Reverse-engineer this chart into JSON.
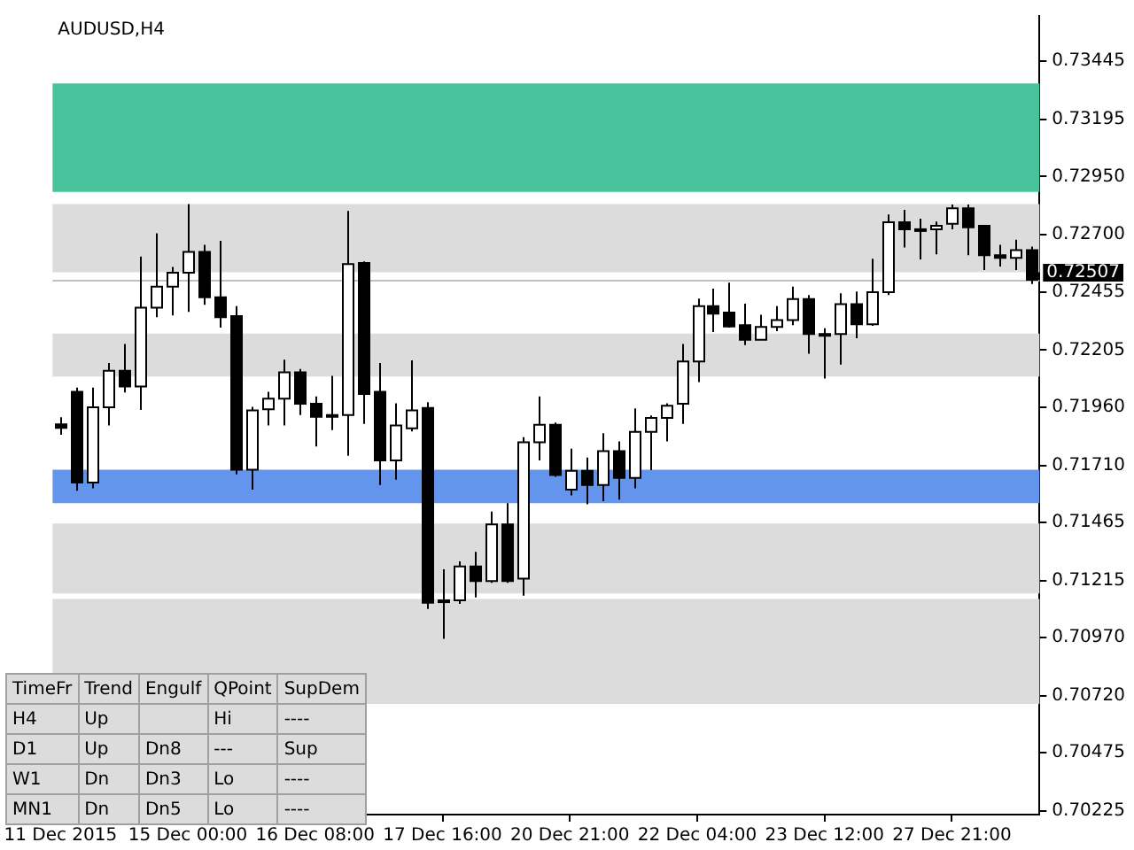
{
  "chart_data": {
    "type": "candlestick",
    "title": "AUDUSD,H4",
    "categories": [
      "11 Dec 2015",
      null,
      null,
      null,
      null,
      null,
      null,
      null,
      "15 Dec 00:00",
      null,
      null,
      null,
      null,
      null,
      null,
      null,
      "16 Dec 08:00",
      null,
      null,
      null,
      null,
      null,
      null,
      null,
      "17 Dec 16:00",
      null,
      null,
      null,
      null,
      null,
      null,
      null,
      "20 Dec 21:00",
      null,
      null,
      null,
      null,
      null,
      null,
      null,
      "22 Dec 04:00",
      null,
      null,
      null,
      null,
      null,
      null,
      null,
      "23 Dec 12:00",
      null,
      null,
      null,
      null,
      null,
      null,
      null,
      "27 Dec 21:00",
      null,
      null,
      null,
      null,
      null
    ],
    "ohlc": [
      [
        0.71886,
        0.71916,
        0.71841,
        0.71871
      ],
      [
        0.72026,
        0.72044,
        0.71601,
        0.71636
      ],
      [
        0.71636,
        0.72044,
        0.71611,
        0.71959
      ],
      [
        0.71959,
        0.72149,
        0.71881,
        0.72116
      ],
      [
        0.72116,
        0.72231,
        0.72023,
        0.72049
      ],
      [
        0.72049,
        0.72607,
        0.71948,
        0.72387
      ],
      [
        0.72387,
        0.72706,
        0.72346,
        0.72477
      ],
      [
        0.72477,
        0.72562,
        0.72354,
        0.72537
      ],
      [
        0.72537,
        0.72832,
        0.72369,
        0.72627
      ],
      [
        0.72627,
        0.72657,
        0.72399,
        0.72432
      ],
      [
        0.72432,
        0.72674,
        0.72301,
        0.72346
      ],
      [
        0.72351,
        0.72394,
        0.71671,
        0.71691
      ],
      [
        0.71691,
        0.71961,
        0.71606,
        0.71946
      ],
      [
        0.71951,
        0.72026,
        0.71881,
        0.71996
      ],
      [
        0.71996,
        0.72164,
        0.71881,
        0.72109
      ],
      [
        0.72109,
        0.72124,
        0.71926,
        0.71974
      ],
      [
        0.71974,
        0.72006,
        0.71791,
        0.71918
      ],
      [
        0.71926,
        0.72094,
        0.71861,
        0.71926
      ],
      [
        0.71926,
        0.72802,
        0.71751,
        0.72574
      ],
      [
        0.72579,
        0.72586,
        0.71888,
        0.72016
      ],
      [
        0.72026,
        0.72149,
        0.71626,
        0.71731
      ],
      [
        0.71731,
        0.71976,
        0.71648,
        0.71881
      ],
      [
        0.71869,
        0.72161,
        0.71856,
        0.71946
      ],
      [
        0.71956,
        0.71981,
        0.71093,
        0.7112
      ],
      [
        0.7113,
        0.71263,
        0.70965,
        0.7113
      ],
      [
        0.7113,
        0.71298,
        0.71115,
        0.71276
      ],
      [
        0.71276,
        0.71338,
        0.71143,
        0.71213
      ],
      [
        0.71213,
        0.71511,
        0.71205,
        0.71456
      ],
      [
        0.71456,
        0.71548,
        0.71205,
        0.71213
      ],
      [
        0.71223,
        0.71831,
        0.7115,
        0.71809
      ],
      [
        0.71809,
        0.72006,
        0.71731,
        0.71884
      ],
      [
        0.71884,
        0.71894,
        0.71661,
        0.71668
      ],
      [
        0.71606,
        0.71781,
        0.71581,
        0.71686
      ],
      [
        0.71686,
        0.71743,
        0.71543,
        0.71626
      ],
      [
        0.71626,
        0.71848,
        0.71556,
        0.71771
      ],
      [
        0.71771,
        0.71813,
        0.71563,
        0.71656
      ],
      [
        0.71656,
        0.71954,
        0.71611,
        0.71854
      ],
      [
        0.71854,
        0.71924,
        0.71689,
        0.71914
      ],
      [
        0.71914,
        0.71976,
        0.71813,
        0.71966
      ],
      [
        0.71974,
        0.72231,
        0.71888,
        0.72156
      ],
      [
        0.72156,
        0.72426,
        0.72068,
        0.72394
      ],
      [
        0.72394,
        0.72469,
        0.72282,
        0.72361
      ],
      [
        0.72366,
        0.72494,
        0.72301,
        0.72306
      ],
      [
        0.72312,
        0.72404,
        0.72226,
        0.72249
      ],
      [
        0.72249,
        0.72357,
        0.72249,
        0.72304
      ],
      [
        0.72304,
        0.72394,
        0.72286,
        0.72334
      ],
      [
        0.72334,
        0.72477,
        0.72312,
        0.72424
      ],
      [
        0.72424,
        0.72441,
        0.72189,
        0.72274
      ],
      [
        0.72274,
        0.72299,
        0.72083,
        0.72274
      ],
      [
        0.72274,
        0.72449,
        0.72143,
        0.72402
      ],
      [
        0.72402,
        0.72456,
        0.72256,
        0.72316
      ],
      [
        0.72316,
        0.72597,
        0.72309,
        0.72454
      ],
      [
        0.72454,
        0.72787,
        0.72441,
        0.72754
      ],
      [
        0.72754,
        0.72807,
        0.72646,
        0.72724
      ],
      [
        0.72724,
        0.72769,
        0.72594,
        0.72724
      ],
      [
        0.72724,
        0.72757,
        0.72616,
        0.72739
      ],
      [
        0.72747,
        0.7283,
        0.72724,
        0.72814
      ],
      [
        0.72814,
        0.7283,
        0.72612,
        0.72732
      ],
      [
        0.72739,
        0.72739,
        0.72549,
        0.72612
      ],
      [
        0.72612,
        0.72657,
        0.72564,
        0.72601
      ],
      [
        0.72601,
        0.72679,
        0.72549,
        0.72634
      ],
      [
        0.72634,
        0.72649,
        0.72489,
        0.72507
      ]
    ],
    "colors": [
      "#000000",
      "#000000",
      "#ffffff",
      "#ffffff",
      "#000000",
      "#ffffff",
      "#ffffff",
      "#ffffff",
      "#ffffff",
      "#000000",
      "#000000",
      "#000000",
      "#ffffff",
      "#ffffff",
      "#ffffff",
      "#000000",
      "#000000",
      "#000000",
      "#ffffff",
      "#000000",
      "#000000",
      "#ffffff",
      "#ffffff",
      "#000000",
      "#000000",
      "#ffffff",
      "#000000",
      "#ffffff",
      "#000000",
      "#ffffff",
      "#ffffff",
      "#000000",
      "#ffffff",
      "#000000",
      "#ffffff",
      "#000000",
      "#ffffff",
      "#ffffff",
      "#ffffff",
      "#ffffff",
      "#ffffff",
      "#000000",
      "#000000",
      "#000000",
      "#ffffff",
      "#ffffff",
      "#ffffff",
      "#000000",
      "#000000",
      "#ffffff",
      "#000000",
      "#ffffff",
      "#ffffff",
      "#000000",
      "#000000",
      "#ffffff",
      "#ffffff",
      "#000000",
      "#000000",
      "#000000",
      "#ffffff",
      "#000000"
    ],
    "ylim": [
      0.7021,
      0.7364
    ],
    "yticks": [
      {
        "value": 0.73445,
        "label": "0.73445"
      },
      {
        "value": 0.73195,
        "label": "0.73195"
      },
      {
        "value": 0.7295,
        "label": "0.72950"
      },
      {
        "value": 0.727,
        "label": "0.72700"
      },
      {
        "value": 0.72455,
        "label": "0.72455"
      },
      {
        "value": 0.72205,
        "label": "0.72205"
      },
      {
        "value": 0.7196,
        "label": "0.71960"
      },
      {
        "value": 0.7171,
        "label": "0.71710"
      },
      {
        "value": 0.71465,
        "label": "0.71465"
      },
      {
        "value": 0.71215,
        "label": "0.71215"
      },
      {
        "value": 0.7097,
        "label": "0.70970"
      },
      {
        "value": 0.7072,
        "label": "0.70720"
      },
      {
        "value": 0.70475,
        "label": "0.70475"
      },
      {
        "value": 0.70225,
        "label": "0.70225"
      }
    ],
    "bands": [
      {
        "axis": "y",
        "from": 0.72884,
        "to": 0.7335,
        "color": "#48c39b"
      },
      {
        "axis": "y",
        "from": 0.72539,
        "to": 0.72832,
        "color": "#dcdcdc"
      },
      {
        "axis": "y",
        "from": 0.72091,
        "to": 0.72276,
        "color": "#dcdcdc"
      },
      {
        "axis": "y",
        "from": 0.71548,
        "to": 0.71691,
        "color": "#6495ed"
      },
      {
        "axis": "y",
        "from": 0.7116,
        "to": 0.7146,
        "color": "#dcdcdc"
      },
      {
        "axis": "y",
        "from": 0.70685,
        "to": 0.71136,
        "color": "#dcdcdc"
      }
    ],
    "ref_lines": [
      {
        "axis": "y",
        "value": 0.72507,
        "label": "0.72507",
        "color": "#c0c0c0"
      }
    ],
    "annotations": [
      "TimeFr",
      "Trend",
      "Engulf",
      "QPoint",
      "SupDem",
      "H4",
      "Up",
      null,
      "Hi",
      "----",
      "D1",
      "Up",
      "Dn8",
      "---",
      "Sup",
      "W1",
      "Dn",
      "Dn3",
      "Lo",
      "----",
      "MN1",
      "Dn",
      "Dn5",
      "Lo",
      "----"
    ],
    "grid": false,
    "legend": false
  }
}
